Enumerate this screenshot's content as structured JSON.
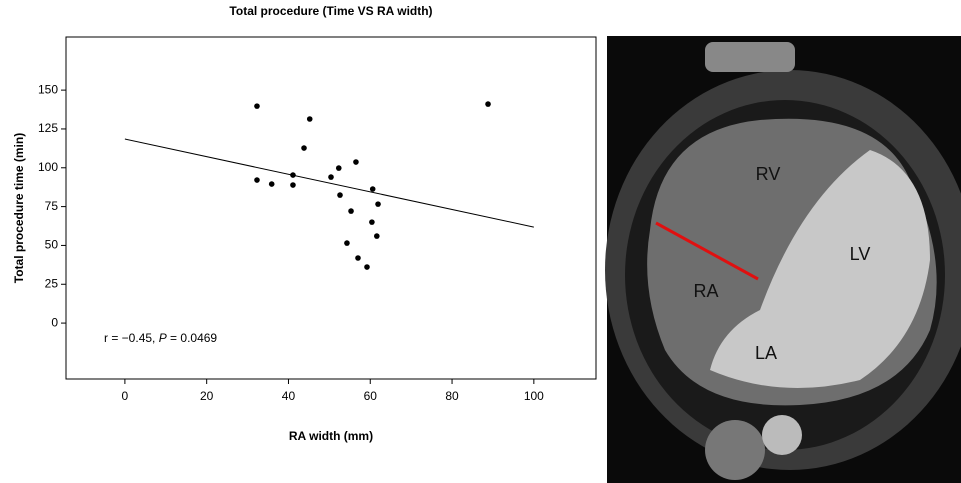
{
  "chart_data": {
    "type": "scatter",
    "title": "Total procedure (Time VS RA width)",
    "x_label": "RA width (mm)",
    "y_label": "Total procedure time (min)",
    "annotation_parts": [
      "r = −0.45, ",
      "P",
      " = 0.0469"
    ],
    "x": [
      32.3,
      45.2,
      43.8,
      32.3,
      35.9,
      41.1,
      41.1,
      50.4,
      52.3,
      52.6,
      56.5,
      55.3,
      60.6,
      61.9,
      60.4,
      61.6,
      54.3,
      57.0,
      59.2,
      88.8
    ],
    "values": [
      139.7,
      131.4,
      112.7,
      92.1,
      89.5,
      95.3,
      88.9,
      94.0,
      99.8,
      82.4,
      103.7,
      72.1,
      86.3,
      76.6,
      65.0,
      56.0,
      51.5,
      41.9,
      36.1,
      141.0
    ],
    "color": "#000000",
    "fit_line": {
      "x": [
        0,
        100
      ],
      "values": [
        118.5,
        61.8
      ],
      "color": "#000000"
    },
    "xlim": [
      -14.4,
      115.2
    ],
    "xticks": [
      0,
      20,
      40,
      60,
      80,
      100
    ],
    "ylim": [
      -36,
      184.2
    ],
    "yticks": [
      0,
      25,
      50,
      75,
      100,
      125,
      150
    ],
    "grid": false
  },
  "image_labels": [
    "RV",
    "LV",
    "RA",
    "LA"
  ]
}
